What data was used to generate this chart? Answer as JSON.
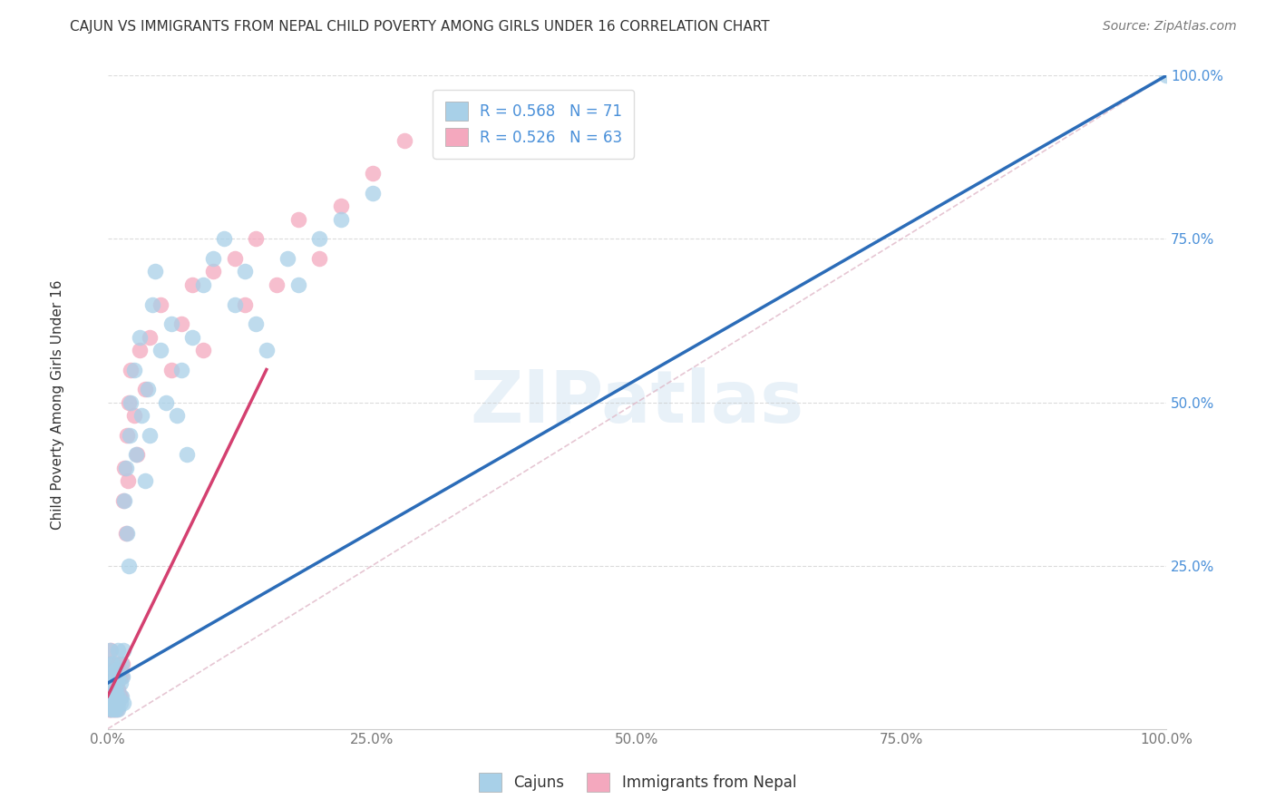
{
  "title": "CAJUN VS IMMIGRANTS FROM NEPAL CHILD POVERTY AMONG GIRLS UNDER 16 CORRELATION CHART",
  "source": "Source: ZipAtlas.com",
  "ylabel": "Child Poverty Among Girls Under 16",
  "watermark": "ZIPatlas",
  "legend_cajun": "Cajuns",
  "legend_nepal": "Immigrants from Nepal",
  "r_cajun": 0.568,
  "n_cajun": 71,
  "r_nepal": 0.526,
  "n_nepal": 63,
  "color_cajun": "#a8d0e8",
  "color_nepal": "#f4a8be",
  "color_cajun_line": "#2b6cb8",
  "color_nepal_line": "#d44070",
  "color_diag": "#e0b8c8",
  "cajun_x": [
    0.001,
    0.002,
    0.002,
    0.003,
    0.003,
    0.003,
    0.004,
    0.004,
    0.004,
    0.004,
    0.005,
    0.005,
    0.005,
    0.005,
    0.006,
    0.006,
    0.006,
    0.007,
    0.007,
    0.007,
    0.008,
    0.008,
    0.008,
    0.009,
    0.009,
    0.01,
    0.01,
    0.01,
    0.01,
    0.012,
    0.012,
    0.013,
    0.013,
    0.014,
    0.015,
    0.015,
    0.016,
    0.017,
    0.018,
    0.02,
    0.021,
    0.022,
    0.025,
    0.027,
    0.03,
    0.032,
    0.035,
    0.038,
    0.04,
    0.042,
    0.045,
    0.05,
    0.055,
    0.06,
    0.065,
    0.07,
    0.075,
    0.08,
    0.09,
    0.1,
    0.11,
    0.12,
    0.13,
    0.14,
    0.15,
    0.17,
    0.18,
    0.2,
    0.22,
    0.25,
    1.0
  ],
  "cajun_y": [
    0.04,
    0.06,
    0.12,
    0.03,
    0.05,
    0.08,
    0.03,
    0.04,
    0.06,
    0.1,
    0.04,
    0.05,
    0.07,
    0.1,
    0.03,
    0.05,
    0.08,
    0.04,
    0.06,
    0.09,
    0.03,
    0.05,
    0.08,
    0.04,
    0.07,
    0.03,
    0.05,
    0.08,
    0.12,
    0.04,
    0.07,
    0.05,
    0.1,
    0.08,
    0.04,
    0.12,
    0.35,
    0.4,
    0.3,
    0.25,
    0.45,
    0.5,
    0.55,
    0.42,
    0.6,
    0.48,
    0.38,
    0.52,
    0.45,
    0.65,
    0.7,
    0.58,
    0.5,
    0.62,
    0.48,
    0.55,
    0.42,
    0.6,
    0.68,
    0.72,
    0.75,
    0.65,
    0.7,
    0.62,
    0.58,
    0.72,
    0.68,
    0.75,
    0.78,
    0.82,
    1.0
  ],
  "nepal_x": [
    0.001,
    0.001,
    0.001,
    0.002,
    0.002,
    0.002,
    0.002,
    0.003,
    0.003,
    0.003,
    0.003,
    0.004,
    0.004,
    0.004,
    0.005,
    0.005,
    0.005,
    0.006,
    0.006,
    0.006,
    0.007,
    0.007,
    0.007,
    0.008,
    0.008,
    0.009,
    0.009,
    0.01,
    0.01,
    0.01,
    0.011,
    0.011,
    0.012,
    0.012,
    0.013,
    0.014,
    0.015,
    0.016,
    0.017,
    0.018,
    0.019,
    0.02,
    0.022,
    0.025,
    0.028,
    0.03,
    0.035,
    0.04,
    0.05,
    0.06,
    0.07,
    0.08,
    0.09,
    0.1,
    0.12,
    0.13,
    0.14,
    0.16,
    0.18,
    0.2,
    0.22,
    0.25,
    0.28
  ],
  "nepal_y": [
    0.03,
    0.05,
    0.08,
    0.03,
    0.04,
    0.07,
    0.1,
    0.03,
    0.05,
    0.08,
    0.12,
    0.04,
    0.06,
    0.09,
    0.03,
    0.05,
    0.08,
    0.03,
    0.05,
    0.09,
    0.04,
    0.06,
    0.09,
    0.04,
    0.07,
    0.03,
    0.06,
    0.04,
    0.06,
    0.1,
    0.05,
    0.08,
    0.05,
    0.09,
    0.08,
    0.1,
    0.35,
    0.4,
    0.3,
    0.45,
    0.38,
    0.5,
    0.55,
    0.48,
    0.42,
    0.58,
    0.52,
    0.6,
    0.65,
    0.55,
    0.62,
    0.68,
    0.58,
    0.7,
    0.72,
    0.65,
    0.75,
    0.68,
    0.78,
    0.72,
    0.8,
    0.85,
    0.9
  ],
  "xlim": [
    0.0,
    1.0
  ],
  "ylim": [
    0.0,
    1.0
  ],
  "xticks": [
    0.0,
    0.25,
    0.5,
    0.75,
    1.0
  ],
  "xticklabels": [
    "0.0%",
    "25.0%",
    "50.0%",
    "75.0%",
    "100.0%"
  ],
  "yticks": [
    0.25,
    0.5,
    0.75,
    1.0
  ],
  "yticklabels": [
    "25.0%",
    "50.0%",
    "75.0%",
    "100.0%"
  ],
  "background_color": "#ffffff",
  "grid_color": "#cccccc"
}
